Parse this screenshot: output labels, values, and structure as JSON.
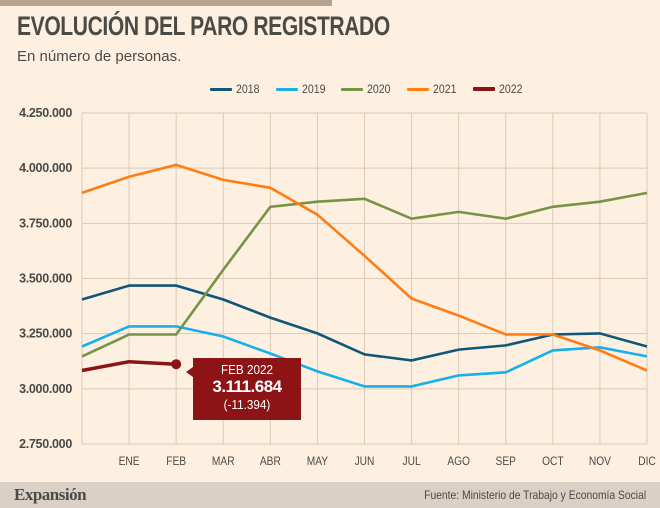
{
  "header": {
    "title": "EVOLUCIÓN DEL PARO REGISTRADO",
    "subtitle": "En número de personas."
  },
  "footer": {
    "brand": "Expansión",
    "source": "Fuente: Ministerio de Trabajo y Economía Social"
  },
  "tooltip": {
    "label": "FEB 2022",
    "value": "3.111.684",
    "diff": "(-11.394)"
  },
  "chart_data": {
    "type": "line",
    "title": "EVOLUCIÓN DEL PARO REGISTRADO",
    "subtitle": "En número de personas.",
    "xlabel": "",
    "ylabel": "",
    "categories": [
      "",
      "ENE",
      "FEB",
      "MAR",
      "ABR",
      "MAY",
      "JUN",
      "JUL",
      "AGO",
      "SEP",
      "OCT",
      "NOV",
      "DIC"
    ],
    "ylim": [
      2750000,
      4250000
    ],
    "yticks": [
      2750000,
      3000000,
      3250000,
      3500000,
      3750000,
      4000000,
      4250000
    ],
    "ytick_labels": [
      "2.750.000",
      "3.000.000",
      "3.250.000",
      "3.500.000",
      "3.750.000",
      "4.000.000",
      "4.250.000"
    ],
    "grid": true,
    "legend_position": "top",
    "series": [
      {
        "name": "2018",
        "color": "#0f5679",
        "values": [
          3405000,
          3468000,
          3468000,
          3405000,
          3323000,
          3251000,
          3156000,
          3129000,
          3178000,
          3197000,
          3246000,
          3251000,
          3192000
        ]
      },
      {
        "name": "2019",
        "color": "#17b0ea",
        "values": [
          3192000,
          3283000,
          3283000,
          3237000,
          3160000,
          3079000,
          3011000,
          3011000,
          3061000,
          3075000,
          3174000,
          3188000,
          3147000
        ]
      },
      {
        "name": "2020",
        "color": "#759545",
        "values": [
          3147000,
          3246000,
          3246000,
          3540000,
          3825000,
          3848000,
          3861000,
          3771000,
          3802000,
          3771000,
          3825000,
          3848000,
          3888000
        ]
      },
      {
        "name": "2021",
        "color": "#ff7d14",
        "values": [
          3888000,
          3961000,
          4015000,
          3947000,
          3911000,
          3789000,
          3603000,
          3409000,
          3332000,
          3246000,
          3246000,
          3174000,
          3083000
        ]
      },
      {
        "name": "2022",
        "color": "#8c1416",
        "values": [
          3083000,
          3123078,
          3111684
        ]
      }
    ],
    "annotations": [
      {
        "series": "2022",
        "category": "FEB",
        "text": "FEB 2022 3.111.684 (-11.394)"
      }
    ]
  }
}
